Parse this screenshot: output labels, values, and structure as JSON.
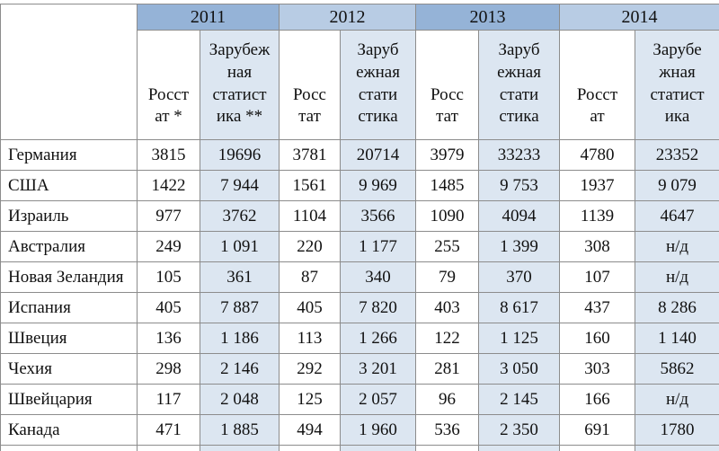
{
  "colors": {
    "year_header_dark": "#95B3D7",
    "year_header_light": "#B8CCE4",
    "column_shade": "#DCE6F1",
    "border": "#8C8C8C",
    "text": "#111111"
  },
  "table": {
    "years": [
      "2011",
      "2012",
      "2013",
      "2014"
    ],
    "subheaders": [
      "Росст\nат *",
      "Зарубеж\nная\nстатист\nика **",
      "Росс\nтат",
      "Заруб\nежная\nстати\nстика",
      "Росс\nтат",
      "Заруб\nежная\nстати\nстика",
      "Росст\nат",
      "Зарубе\nжная\nстатист\nика"
    ],
    "rows": [
      {
        "country": "Германия",
        "values": [
          "3815",
          "19696",
          "3781",
          "20714",
          "3979",
          "33233",
          "4780",
          "23352"
        ]
      },
      {
        "country": "США",
        "values": [
          "1422",
          "7 944",
          "1561",
          "9 969",
          "1485",
          "9 753",
          "1937",
          "9 079"
        ]
      },
      {
        "country": "Израиль",
        "values": [
          "977",
          "3762",
          "1104",
          "3566",
          "1090",
          "4094",
          "1139",
          "4647"
        ]
      },
      {
        "country": "Австралия",
        "values": [
          "249",
          "1 091",
          "220",
          "1 177",
          "255",
          "1 399",
          "308",
          "н/д"
        ]
      },
      {
        "country": "Новая Зеландия",
        "values": [
          "105",
          "361",
          "87",
          "340",
          "79",
          "370",
          "107",
          "н/д"
        ]
      },
      {
        "country": "Испания",
        "values": [
          "405",
          "7 887",
          "405",
          "7 820",
          "403",
          "8 617",
          "437",
          "8 286"
        ]
      },
      {
        "country": "Швеция",
        "values": [
          "136",
          "1 186",
          "113",
          "1 266",
          "122",
          "1 125",
          "160",
          "1 140"
        ]
      },
      {
        "country": "Чехия",
        "values": [
          "298",
          "2 146",
          "292",
          "3 201",
          "281",
          "3 050",
          "303",
          "5862"
        ]
      },
      {
        "country": "Швейцария",
        "values": [
          "117",
          "2 048",
          "125",
          "2 057",
          "96",
          "2 145",
          "166",
          "н/д"
        ]
      },
      {
        "country": "Канада",
        "values": [
          "471",
          "1 885",
          "494",
          "1 960",
          "536",
          "2 350",
          "691",
          "1780"
        ]
      }
    ]
  }
}
